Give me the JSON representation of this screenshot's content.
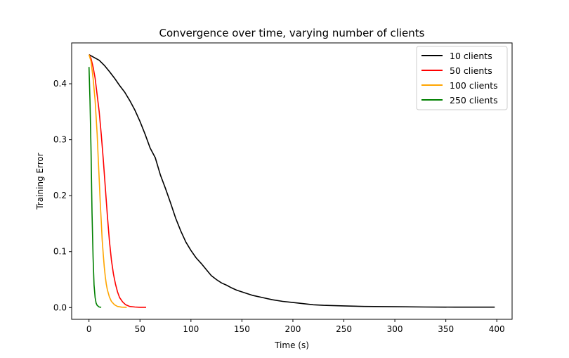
{
  "chart_data": {
    "type": "line",
    "title": "Convergence over time, varying number of clients",
    "xlabel": "Time (s)",
    "ylabel": "Training Error",
    "xlim": [
      -17,
      415
    ],
    "ylim": [
      -0.021,
      0.473
    ],
    "xticks": [
      0,
      50,
      100,
      150,
      200,
      250,
      300,
      350,
      400
    ],
    "yticks": [
      0.0,
      0.1,
      0.2,
      0.3,
      0.4
    ],
    "grid": false,
    "legend": "top-right",
    "series": [
      {
        "name": "10 clients",
        "color": "#000000",
        "x": [
          0,
          5,
          10,
          15,
          20,
          25,
          30,
          35,
          40,
          45,
          50,
          55,
          60,
          65,
          70,
          75,
          80,
          85,
          90,
          95,
          100,
          105,
          110,
          115,
          120,
          125,
          130,
          135,
          140,
          145,
          150,
          155,
          160,
          170,
          180,
          190,
          200,
          210,
          220,
          230,
          250,
          270,
          300,
          330,
          360,
          398
        ],
        "y": [
          0.452,
          0.447,
          0.442,
          0.433,
          0.422,
          0.41,
          0.397,
          0.385,
          0.37,
          0.353,
          0.333,
          0.31,
          0.285,
          0.268,
          0.237,
          0.213,
          0.187,
          0.16,
          0.137,
          0.117,
          0.102,
          0.089,
          0.079,
          0.068,
          0.057,
          0.05,
          0.044,
          0.04,
          0.035,
          0.031,
          0.028,
          0.025,
          0.022,
          0.018,
          0.014,
          0.011,
          0.009,
          0.007,
          0.005,
          0.004,
          0.003,
          0.002,
          0.0015,
          0.001,
          0.0008,
          0.0008
        ]
      },
      {
        "name": "50 clients",
        "color": "#ff0000",
        "x": [
          0,
          2,
          4,
          6,
          8,
          10,
          12,
          14,
          16,
          18,
          20,
          22,
          24,
          26,
          28,
          30,
          33,
          36,
          40,
          45,
          50,
          56
        ],
        "y": [
          0.452,
          0.445,
          0.43,
          0.41,
          0.38,
          0.35,
          0.31,
          0.265,
          0.215,
          0.165,
          0.12,
          0.085,
          0.06,
          0.042,
          0.028,
          0.018,
          0.01,
          0.005,
          0.002,
          0.001,
          0.0005,
          0.0005
        ]
      },
      {
        "name": "100 clients",
        "color": "#ffa500",
        "x": [
          0,
          2,
          4,
          6,
          8,
          9,
          10,
          11,
          12,
          13,
          14,
          15,
          16,
          17,
          18,
          20,
          22,
          25,
          28,
          32,
          37
        ],
        "y": [
          0.452,
          0.44,
          0.41,
          0.37,
          0.31,
          0.27,
          0.23,
          0.19,
          0.155,
          0.12,
          0.095,
          0.073,
          0.055,
          0.042,
          0.032,
          0.019,
          0.011,
          0.005,
          0.002,
          0.0008,
          0.0005
        ]
      },
      {
        "name": "250 clients",
        "color": "#008000",
        "x": [
          0,
          1,
          2,
          3,
          4,
          5,
          6,
          7,
          8,
          10,
          12
        ],
        "y": [
          0.43,
          0.37,
          0.28,
          0.17,
          0.09,
          0.04,
          0.018,
          0.008,
          0.004,
          0.001,
          0.0005
        ]
      }
    ]
  }
}
